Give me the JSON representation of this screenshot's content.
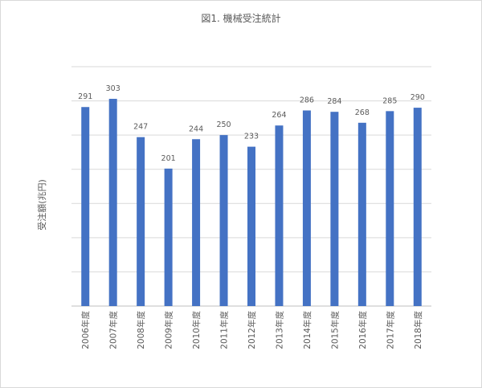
{
  "chart_data": {
    "type": "bar",
    "title": "図1. 機械受注統計",
    "ylabel": "受注額(兆円)",
    "xlabel": "",
    "categories": [
      "2006年度",
      "2007年度",
      "2008年度",
      "2009年度",
      "2010年度",
      "2011年度",
      "2012年度",
      "2013年度",
      "2014年度",
      "2015年度",
      "2016年度",
      "2017年度",
      "2018年度"
    ],
    "values": [
      291,
      303,
      247,
      201,
      244,
      250,
      233,
      264,
      286,
      284,
      268,
      285,
      290
    ],
    "ylim": [
      0,
      350
    ],
    "grid": true,
    "bar_color": "#4472C4"
  }
}
